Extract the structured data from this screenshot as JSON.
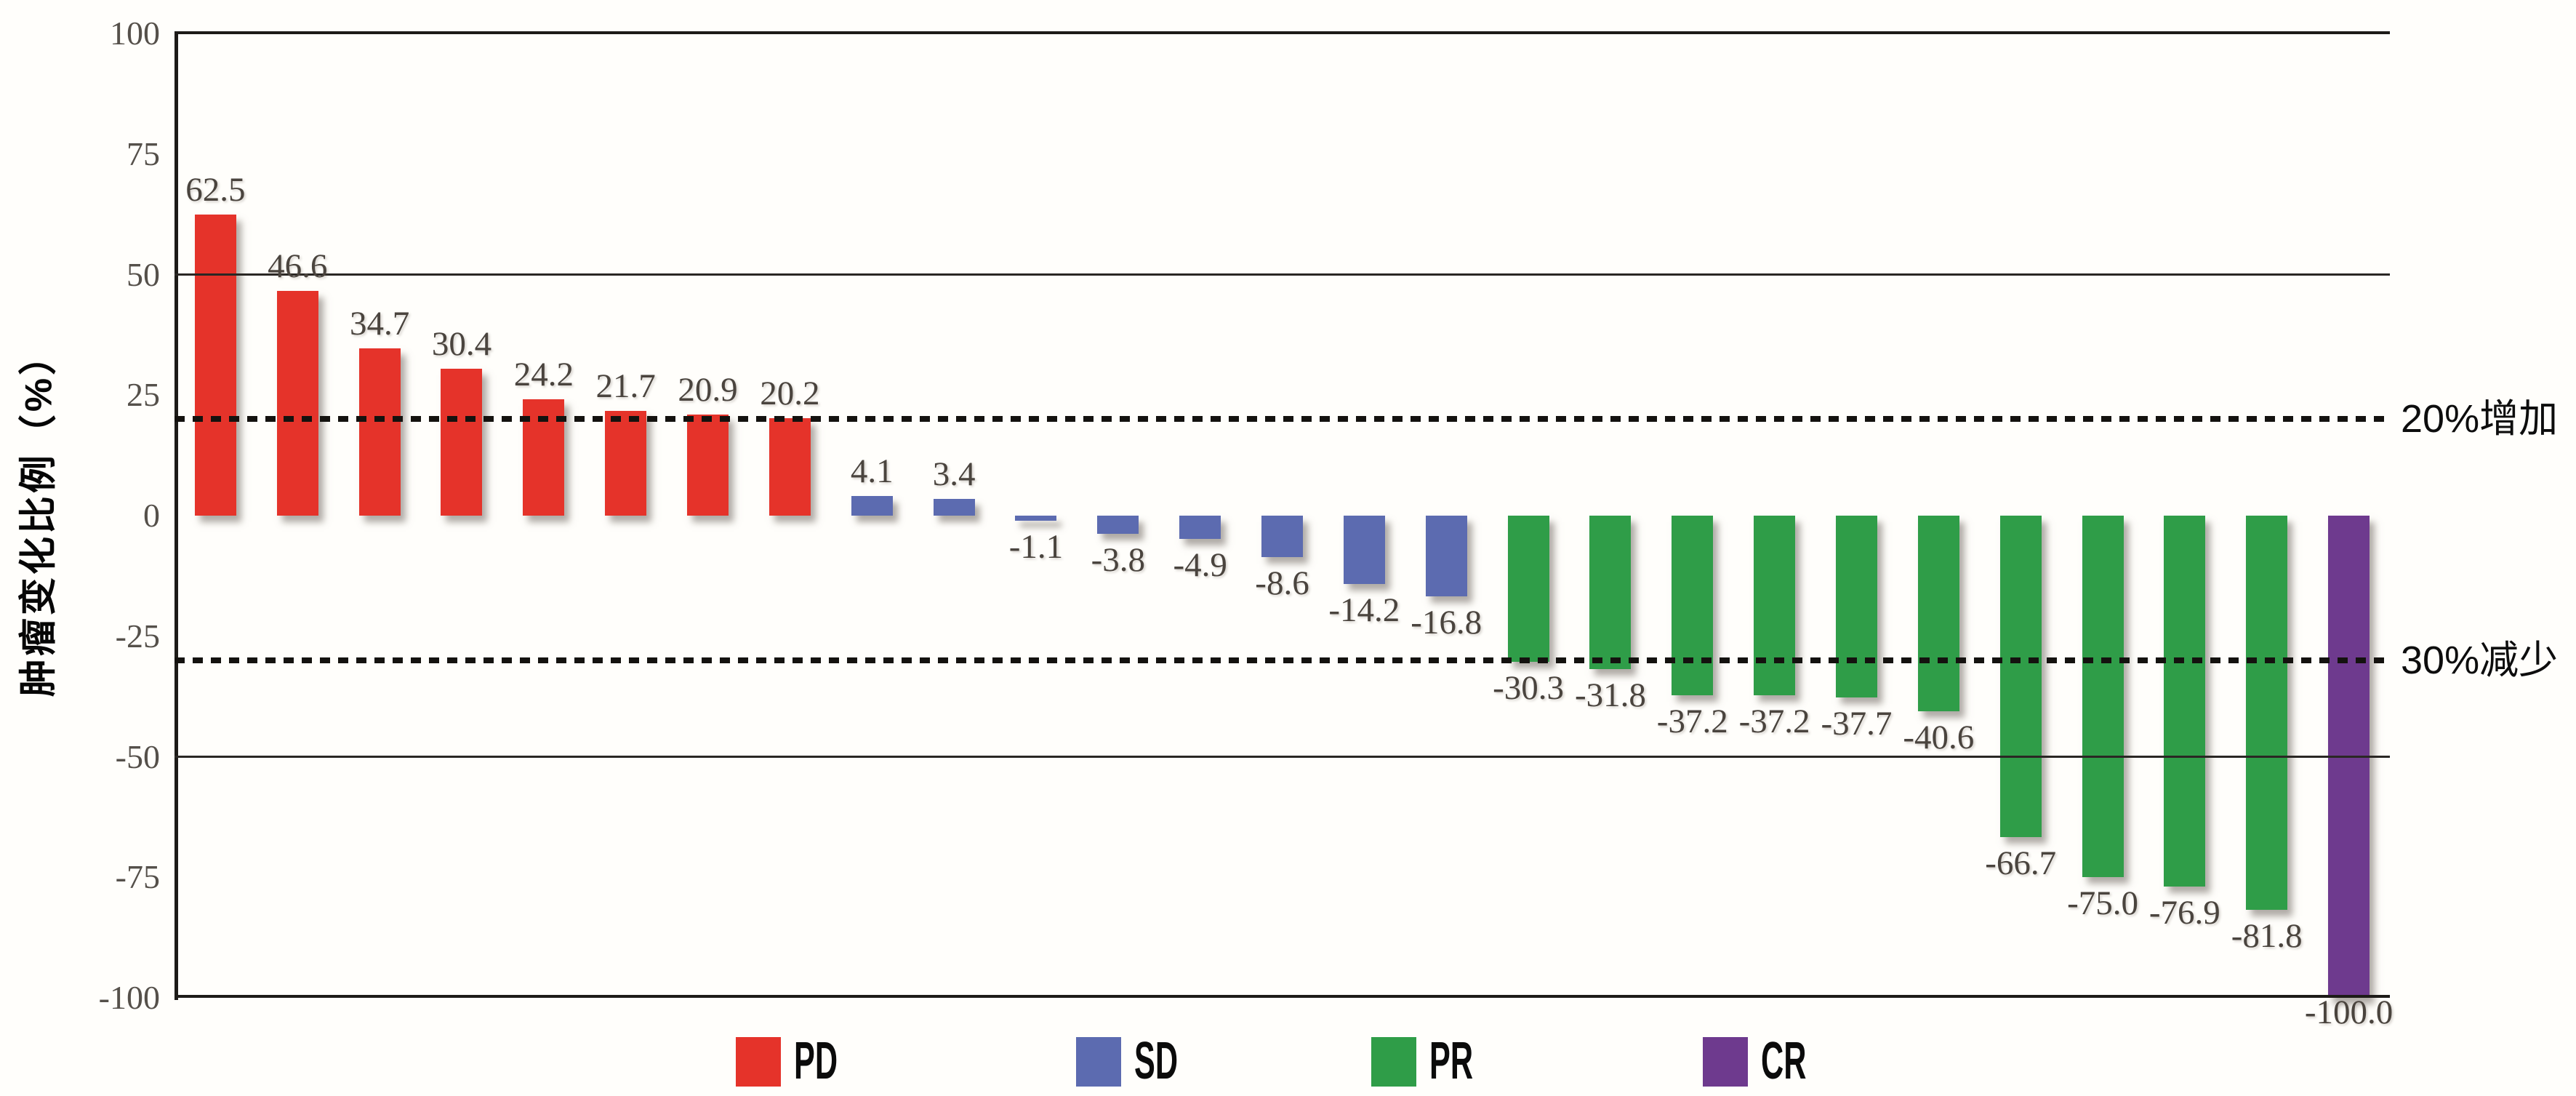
{
  "chart_data": {
    "type": "bar",
    "title": "",
    "ylabel": "肿瘤变化比例（%）",
    "xlabel": "",
    "ylim": [
      -100,
      100
    ],
    "yticks": [
      100,
      75,
      50,
      25,
      0,
      -25,
      -50,
      -75,
      -100
    ],
    "solid_gridlines": [
      50,
      -50
    ],
    "reference_lines": [
      {
        "value": 20,
        "label": "20%增加",
        "style": "dotted"
      },
      {
        "value": -30,
        "label": "30%减少",
        "style": "dotted"
      }
    ],
    "grid": "horizontal-partial",
    "legend_position": "bottom",
    "bars": [
      {
        "value": 62.5,
        "label": "62.5",
        "group": "PD"
      },
      {
        "value": 46.6,
        "label": "46.6",
        "group": "PD"
      },
      {
        "value": 34.7,
        "label": "34.7",
        "group": "PD"
      },
      {
        "value": 30.4,
        "label": "30.4",
        "group": "PD"
      },
      {
        "value": 24.2,
        "label": "24.2",
        "group": "PD"
      },
      {
        "value": 21.7,
        "label": "21.7",
        "group": "PD"
      },
      {
        "value": 20.9,
        "label": "20.9",
        "group": "PD"
      },
      {
        "value": 20.2,
        "label": "20.2",
        "group": "PD"
      },
      {
        "value": 4.1,
        "label": "4.1",
        "group": "SD"
      },
      {
        "value": 3.4,
        "label": "3.4",
        "group": "SD"
      },
      {
        "value": -1.1,
        "label": "-1.1",
        "group": "SD"
      },
      {
        "value": -3.8,
        "label": "-3.8",
        "group": "SD"
      },
      {
        "value": -4.9,
        "label": "-4.9",
        "group": "SD"
      },
      {
        "value": -8.6,
        "label": "-8.6",
        "group": "SD"
      },
      {
        "value": -14.2,
        "label": "-14.2",
        "group": "SD"
      },
      {
        "value": -16.8,
        "label": "-16.8",
        "group": "SD"
      },
      {
        "value": -30.3,
        "label": "-30.3",
        "group": "PR"
      },
      {
        "value": -31.8,
        "label": "-31.8",
        "group": "PR"
      },
      {
        "value": -37.2,
        "label": "-37.2",
        "group": "PR"
      },
      {
        "value": -37.2,
        "label": "-37.2",
        "group": "PR"
      },
      {
        "value": -37.7,
        "label": "-37.7",
        "group": "PR"
      },
      {
        "value": -40.6,
        "label": "-40.6",
        "group": "PR"
      },
      {
        "value": -66.7,
        "label": "-66.7",
        "group": "PR"
      },
      {
        "value": -75.0,
        "label": "-75.0",
        "group": "PR"
      },
      {
        "value": -76.9,
        "label": "-76.9",
        "group": "PR"
      },
      {
        "value": -81.8,
        "label": "-81.8",
        "group": "PR"
      },
      {
        "value": -100.0,
        "label": "-100.0",
        "group": "CR"
      }
    ],
    "legend": [
      {
        "label": "PD",
        "color": "#e5332a"
      },
      {
        "label": "SD",
        "color": "#5c6bb0"
      },
      {
        "label": "PR",
        "color": "#2f9d48"
      },
      {
        "label": "CR",
        "color": "#6e3a8e"
      }
    ]
  }
}
